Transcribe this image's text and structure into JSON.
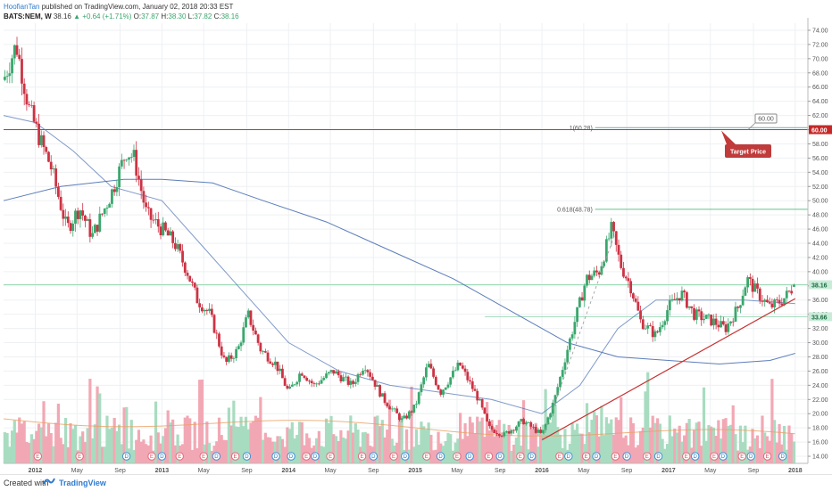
{
  "header": {
    "author": "HoofianTan",
    "published": "published on TradingView.com, January 02, 2018 20:33 EST",
    "symbol": "BATS:NEM, W",
    "last": "38.16",
    "change": "▲ +0.64 (+1.71%)",
    "o_label": "O:",
    "o_value": "37.87",
    "h_label": "H:",
    "h_value": "38.30",
    "l_label": "L:",
    "l_value": "37.82",
    "c_label": "C:",
    "c_value": "38.16"
  },
  "footer": {
    "created": "Created with",
    "brand": "TradingView"
  },
  "colors": {
    "up": "#3aa76d",
    "down": "#cc3344",
    "ma50": "#4a6fb4",
    "trend": "#c83232",
    "fib": "#63c28e",
    "vol_up": "#a8dcc0",
    "vol_down": "#f2a8b4"
  },
  "chart_data": {
    "type": "candlestick",
    "title": "BATS:NEM, W",
    "ylim": [
      13.0,
      75.0
    ],
    "y_ticks": [
      "14.00",
      "16.00",
      "18.00",
      "20.00",
      "22.00",
      "24.00",
      "26.00",
      "28.00",
      "30.00",
      "32.00",
      "34.00",
      "36.00",
      "38.00",
      "40.00",
      "42.00",
      "44.00",
      "46.00",
      "48.00",
      "50.00",
      "52.00",
      "54.00",
      "56.00",
      "58.00",
      "60.00",
      "62.00",
      "64.00",
      "66.00",
      "68.00",
      "70.00",
      "72.00",
      "74.00"
    ],
    "x_ticks": [
      "2012",
      "May",
      "Sep",
      "2013",
      "May",
      "Sep",
      "2014",
      "May",
      "Sep",
      "2015",
      "May",
      "Sep",
      "2016",
      "May",
      "Sep",
      "2017",
      "May",
      "Sep",
      "2018"
    ],
    "x_tick_times": [
      2012.0,
      2012.33,
      2012.67,
      2013.0,
      2013.33,
      2013.67,
      2014.0,
      2014.33,
      2014.67,
      2015.0,
      2015.33,
      2015.67,
      2016.0,
      2016.33,
      2016.67,
      2017.0,
      2017.33,
      2017.67,
      2018.0
    ],
    "x_range": [
      2011.75,
      2018.1
    ],
    "price_path": [
      [
        2011.75,
        67
      ],
      [
        2011.85,
        72
      ],
      [
        2011.95,
        63
      ],
      [
        2012.05,
        58
      ],
      [
        2012.12,
        55
      ],
      [
        2012.25,
        46
      ],
      [
        2012.35,
        49
      ],
      [
        2012.45,
        45
      ],
      [
        2012.6,
        51
      ],
      [
        2012.72,
        57
      ],
      [
        2012.78,
        56
      ],
      [
        2012.88,
        48
      ],
      [
        2013.0,
        46
      ],
      [
        2013.1,
        44
      ],
      [
        2013.2,
        40
      ],
      [
        2013.28,
        36
      ],
      [
        2013.38,
        34
      ],
      [
        2013.5,
        27
      ],
      [
        2013.6,
        29
      ],
      [
        2013.68,
        34
      ],
      [
        2013.78,
        29
      ],
      [
        2013.9,
        27
      ],
      [
        2014.0,
        23
      ],
      [
        2014.1,
        26
      ],
      [
        2014.2,
        24
      ],
      [
        2014.35,
        26
      ],
      [
        2014.5,
        24
      ],
      [
        2014.6,
        27
      ],
      [
        2014.75,
        22
      ],
      [
        2014.9,
        19
      ],
      [
        2015.0,
        21
      ],
      [
        2015.1,
        27
      ],
      [
        2015.2,
        23
      ],
      [
        2015.35,
        27
      ],
      [
        2015.5,
        22
      ],
      [
        2015.58,
        18
      ],
      [
        2015.7,
        17
      ],
      [
        2015.85,
        19
      ],
      [
        2016.0,
        17
      ],
      [
        2016.1,
        22
      ],
      [
        2016.2,
        29
      ],
      [
        2016.35,
        39
      ],
      [
        2016.45,
        40
      ],
      [
        2016.55,
        46
      ],
      [
        2016.62,
        41
      ],
      [
        2016.7,
        38
      ],
      [
        2016.78,
        33
      ],
      [
        2016.9,
        31
      ],
      [
        2017.0,
        35
      ],
      [
        2017.1,
        37
      ],
      [
        2017.2,
        34
      ],
      [
        2017.35,
        33
      ],
      [
        2017.45,
        32
      ],
      [
        2017.55,
        35
      ],
      [
        2017.62,
        39
      ],
      [
        2017.7,
        37
      ],
      [
        2017.8,
        35
      ],
      [
        2017.9,
        36
      ],
      [
        2018.0,
        38.16
      ]
    ],
    "series": [
      {
        "name": "MA 50",
        "points": [
          [
            2011.75,
            50
          ],
          [
            2012.2,
            52
          ],
          [
            2012.7,
            53
          ],
          [
            2013.0,
            53
          ],
          [
            2013.4,
            52.5
          ],
          [
            2013.8,
            50
          ],
          [
            2014.3,
            47
          ],
          [
            2014.8,
            43
          ],
          [
            2015.3,
            39
          ],
          [
            2015.8,
            34
          ],
          [
            2016.2,
            30
          ],
          [
            2016.6,
            28
          ],
          [
            2017.0,
            27.5
          ],
          [
            2017.4,
            27
          ],
          [
            2017.8,
            27.5
          ],
          [
            2018.0,
            28.5
          ]
        ]
      },
      {
        "name": "MA 20",
        "points": [
          [
            2011.75,
            62
          ],
          [
            2012.0,
            61
          ],
          [
            2012.3,
            57
          ],
          [
            2012.6,
            52
          ],
          [
            2013.0,
            50
          ],
          [
            2013.3,
            44
          ],
          [
            2013.6,
            38
          ],
          [
            2014.0,
            30
          ],
          [
            2014.4,
            26
          ],
          [
            2014.8,
            24
          ],
          [
            2015.2,
            23
          ],
          [
            2015.6,
            22
          ],
          [
            2016.0,
            20
          ],
          [
            2016.3,
            24
          ],
          [
            2016.6,
            32
          ],
          [
            2016.9,
            36
          ],
          [
            2017.2,
            36
          ],
          [
            2017.6,
            36
          ],
          [
            2018.0,
            35.5
          ]
        ]
      }
    ],
    "lines": {
      "target": {
        "value": 60.0,
        "label": "60.00"
      },
      "fib_1": {
        "value": 60.28,
        "label": "1(60.28)"
      },
      "fib_0618": {
        "value": 48.78,
        "label": "0.618(48.78)"
      },
      "last_price": {
        "value": 38.16,
        "label": "38.16"
      },
      "support": {
        "value": 33.66,
        "label": "33.66"
      },
      "trendline": [
        [
          2016.0,
          16.3
        ],
        [
          2018.0,
          36.2
        ]
      ]
    },
    "annotations": {
      "target_callout": "Target Price",
      "target_box": "60.00"
    },
    "events": [
      {
        "t": 2012.02,
        "l": "E"
      },
      {
        "t": 2012.35,
        "l": "E"
      },
      {
        "t": 2012.72,
        "l": "D"
      },
      {
        "t": 2012.92,
        "l": "E"
      },
      {
        "t": 2013.0,
        "l": "D"
      },
      {
        "t": 2013.14,
        "l": "E"
      },
      {
        "t": 2013.33,
        "l": "E"
      },
      {
        "t": 2013.43,
        "l": "D"
      },
      {
        "t": 2013.58,
        "l": "E"
      },
      {
        "t": 2013.67,
        "l": "D"
      },
      {
        "t": 2013.9,
        "l": "D"
      },
      {
        "t": 2014.02,
        "l": "D"
      },
      {
        "t": 2014.14,
        "l": "E"
      },
      {
        "t": 2014.21,
        "l": "D"
      },
      {
        "t": 2014.33,
        "l": "E"
      },
      {
        "t": 2014.58,
        "l": "E"
      },
      {
        "t": 2014.67,
        "l": "D"
      },
      {
        "t": 2014.83,
        "l": "E"
      },
      {
        "t": 2014.92,
        "l": "D"
      },
      {
        "t": 2015.09,
        "l": "E"
      },
      {
        "t": 2015.2,
        "l": "D"
      },
      {
        "t": 2015.33,
        "l": "E"
      },
      {
        "t": 2015.43,
        "l": "D"
      },
      {
        "t": 2015.58,
        "l": "E"
      },
      {
        "t": 2015.67,
        "l": "D"
      },
      {
        "t": 2015.83,
        "l": "E"
      },
      {
        "t": 2015.92,
        "l": "D"
      },
      {
        "t": 2016.14,
        "l": "E"
      },
      {
        "t": 2016.21,
        "l": "D"
      },
      {
        "t": 2016.35,
        "l": "E"
      },
      {
        "t": 2016.43,
        "l": "D"
      },
      {
        "t": 2016.58,
        "l": "E"
      },
      {
        "t": 2016.67,
        "l": "D"
      },
      {
        "t": 2016.83,
        "l": "E"
      },
      {
        "t": 2016.92,
        "l": "D"
      },
      {
        "t": 2017.14,
        "l": "E"
      },
      {
        "t": 2017.21,
        "l": "D"
      },
      {
        "t": 2017.36,
        "l": "E"
      },
      {
        "t": 2017.43,
        "l": "D"
      },
      {
        "t": 2017.58,
        "l": "E"
      },
      {
        "t": 2017.65,
        "l": "D"
      },
      {
        "t": 2017.78,
        "l": "E"
      },
      {
        "t": 2017.9,
        "l": "D"
      }
    ]
  }
}
